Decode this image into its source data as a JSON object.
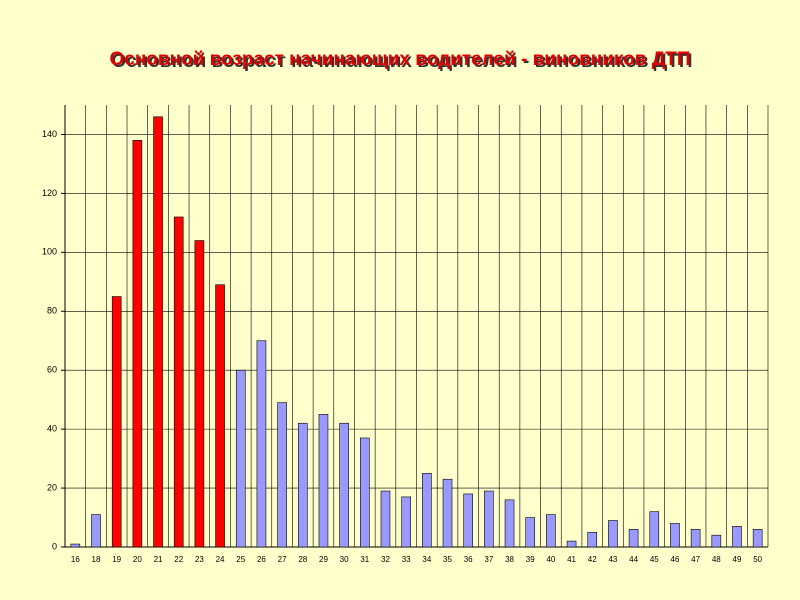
{
  "chart_data": {
    "type": "bar",
    "title": "Основной возраст начинающих водителей - виновников ДТП",
    "categories": [
      "16",
      "18",
      "19",
      "20",
      "21",
      "22",
      "23",
      "24",
      "25",
      "26",
      "27",
      "28",
      "29",
      "30",
      "31",
      "32",
      "33",
      "34",
      "35",
      "36",
      "37",
      "38",
      "39",
      "40",
      "41",
      "42",
      "43",
      "44",
      "45",
      "46",
      "47",
      "48",
      "49",
      "50"
    ],
    "values": [
      1,
      11,
      85,
      138,
      146,
      112,
      104,
      89,
      60,
      70,
      49,
      42,
      45,
      42,
      37,
      19,
      17,
      25,
      23,
      18,
      19,
      16,
      10,
      11,
      2,
      5,
      9,
      6,
      12,
      8,
      6,
      4,
      7,
      6
    ],
    "colors": [
      "#9999ff",
      "#9999ff",
      "#ff0000",
      "#ff0000",
      "#ff0000",
      "#ff0000",
      "#ff0000",
      "#ff0000",
      "#9999ff",
      "#9999ff",
      "#9999ff",
      "#9999ff",
      "#9999ff",
      "#9999ff",
      "#9999ff",
      "#9999ff",
      "#9999ff",
      "#9999ff",
      "#9999ff",
      "#9999ff",
      "#9999ff",
      "#9999ff",
      "#9999ff",
      "#9999ff",
      "#9999ff",
      "#9999ff",
      "#9999ff",
      "#9999ff",
      "#9999ff",
      "#9999ff",
      "#9999ff",
      "#9999ff",
      "#9999ff",
      "#9999ff"
    ],
    "ylim": [
      0,
      150
    ],
    "yticks": [
      0,
      20,
      40,
      60,
      80,
      100,
      120,
      140
    ],
    "grid": true
  }
}
